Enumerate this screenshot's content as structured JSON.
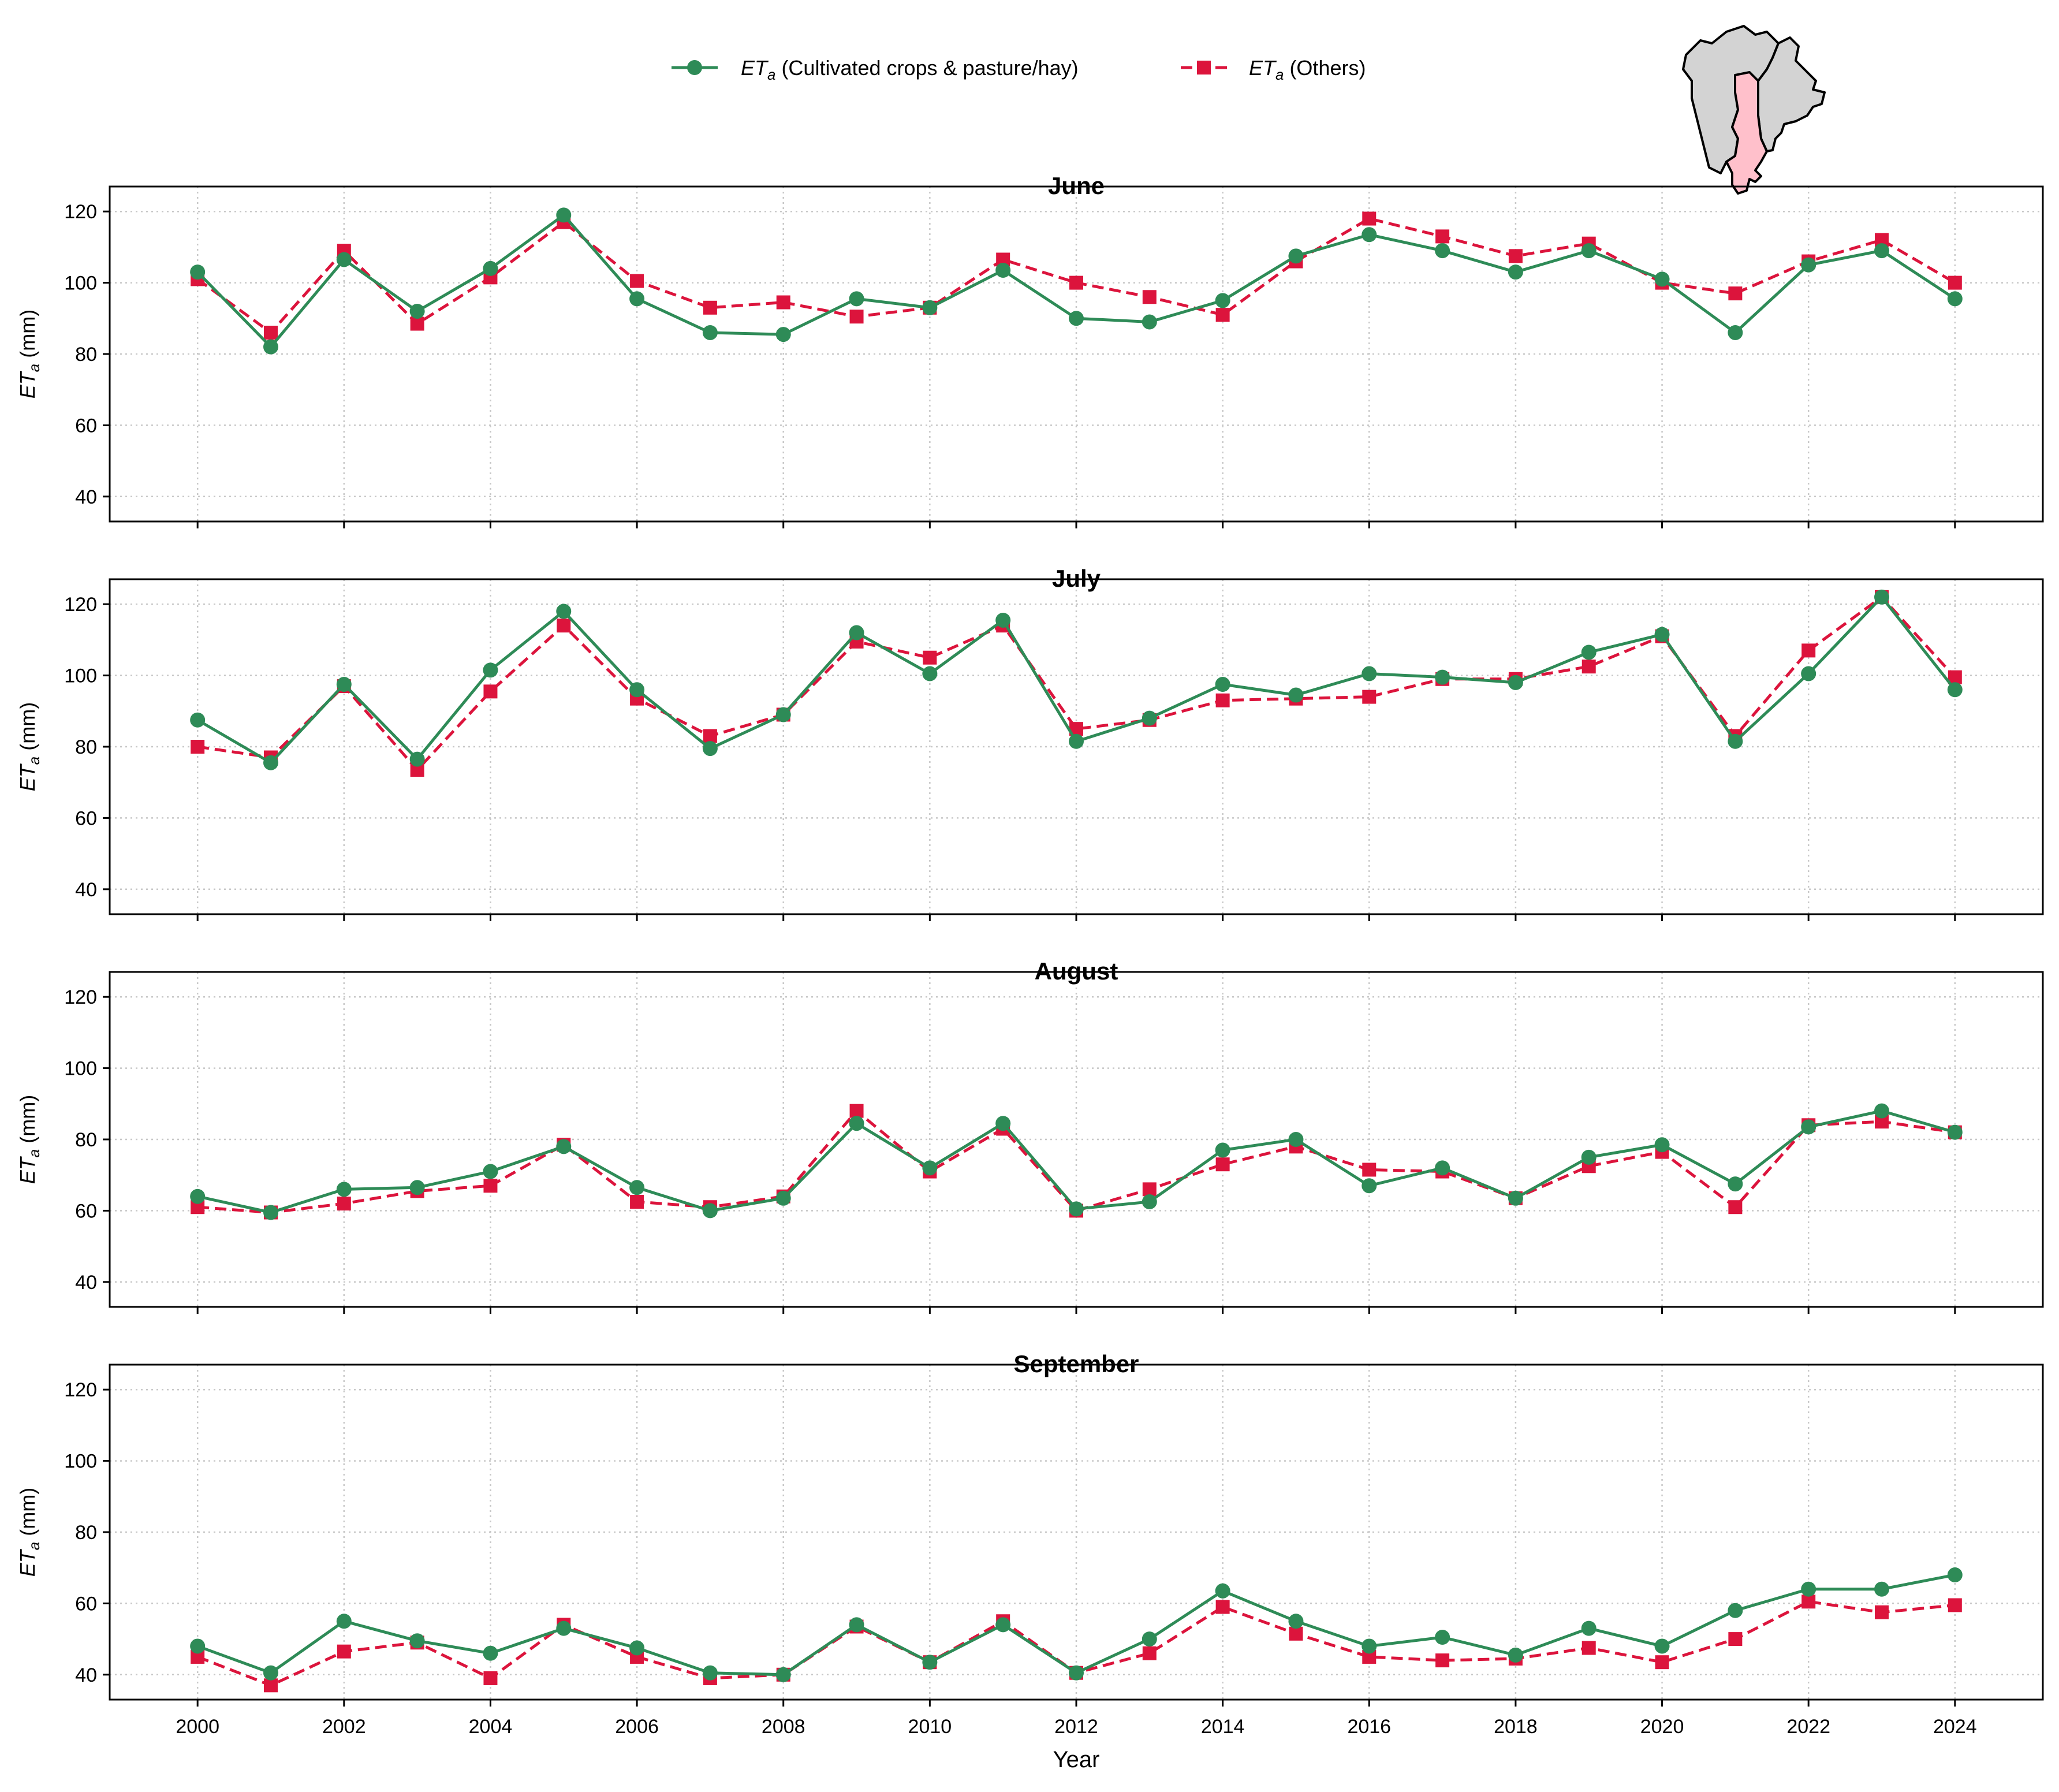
{
  "chart_data": {
    "type": "line",
    "x": [
      2000,
      2001,
      2002,
      2003,
      2004,
      2005,
      2006,
      2007,
      2008,
      2009,
      2010,
      2011,
      2012,
      2013,
      2014,
      2015,
      2016,
      2017,
      2018,
      2019,
      2020,
      2021,
      2022,
      2023,
      2024
    ],
    "xlabel": "Year",
    "ylabel_prefix": "ET",
    "ylabel_sub": "a",
    "ylabel_suffix": " (mm)",
    "ylim": [
      33,
      127
    ],
    "yticks": [
      40,
      60,
      80,
      100,
      120
    ],
    "xticks": [
      2000,
      2002,
      2004,
      2006,
      2008,
      2010,
      2012,
      2014,
      2016,
      2018,
      2020,
      2022,
      2024
    ],
    "xlim": [
      1998.8,
      2025.2
    ],
    "grid": true,
    "legend": {
      "placement": "top-center",
      "entries": [
        {
          "prefix": "ET",
          "sub": "a",
          "suffix": " (Cultivated crops & pasture/hay)",
          "color": "#2e8b57",
          "marker": "circle",
          "dash": "solid"
        },
        {
          "prefix": "ET",
          "sub": "a",
          "suffix": " (Others)",
          "color": "#dc143c",
          "marker": "square",
          "dash": "dashed"
        }
      ]
    },
    "panels": [
      {
        "title": "June",
        "series": [
          {
            "name": "ETa (Cultivated crops & pasture/hay)",
            "values": [
              103,
              82,
              106.5,
              92,
              104,
              119,
              95.5,
              86,
              85.5,
              95.5,
              93,
              103.5,
              90,
              89,
              95,
              107.5,
              113.5,
              109,
              103,
              109,
              101,
              86,
              105,
              109,
              95.5
            ]
          },
          {
            "name": "ETa (Others)",
            "values": [
              101,
              86,
              109,
              88.5,
              101.5,
              117,
              100.5,
              93,
              94.5,
              90.5,
              93,
              106.5,
              100,
              96,
              91,
              106,
              118,
              113,
              107.5,
              111,
              100,
              97,
              106,
              112,
              100
            ]
          }
        ]
      },
      {
        "title": "July",
        "series": [
          {
            "name": "ETa (Cultivated crops & pasture/hay)",
            "values": [
              87.5,
              75.5,
              97.5,
              76.5,
              101.5,
              118,
              96,
              79.5,
              89,
              112,
              100.5,
              115.5,
              81.5,
              88,
              97.5,
              94.5,
              100.5,
              99.5,
              98,
              106.5,
              111.5,
              81.5,
              100.5,
              122,
              96
            ]
          },
          {
            "name": "ETa (Others)",
            "values": [
              80,
              77,
              97,
              73.5,
              95.5,
              114,
              93.5,
              83,
              89,
              109.5,
              105,
              114,
              85,
              87.5,
              93,
              93.5,
              94,
              99,
              99,
              102.5,
              111,
              83,
              107,
              122,
              99.5
            ]
          }
        ]
      },
      {
        "title": "August",
        "series": [
          {
            "name": "ETa (Cultivated crops & pasture/hay)",
            "values": [
              64,
              59.5,
              66,
              66.5,
              71,
              78,
              66.5,
              60,
              63.5,
              84.5,
              72,
              84.5,
              60.5,
              62.5,
              77,
              80,
              67,
              72,
              63.5,
              75,
              78.5,
              67.5,
              83.5,
              88,
              82
            ]
          },
          {
            "name": "ETa (Others)",
            "values": [
              61,
              59.5,
              62,
              65.5,
              67,
              78.5,
              62.5,
              61,
              64,
              88,
              71,
              83,
              60,
              66,
              73,
              78,
              71.5,
              71,
              63.5,
              72.5,
              76.5,
              61,
              84,
              85,
              82
            ]
          }
        ]
      },
      {
        "title": "September",
        "series": [
          {
            "name": "ETa (Cultivated crops & pasture/hay)",
            "values": [
              48,
              40.5,
              55,
              49.5,
              46,
              53,
              47.5,
              40.5,
              40,
              54,
              43.5,
              54,
              40.5,
              50,
              63.5,
              55,
              48,
              50.5,
              45.5,
              53,
              48,
              58,
              64,
              64,
              68
            ]
          },
          {
            "name": "ETa (Others)",
            "values": [
              45,
              37,
              46.5,
              49,
              39,
              54,
              45,
              39,
              40,
              53.5,
              43.5,
              55,
              40.5,
              46,
              59,
              51.5,
              45,
              44,
              44.5,
              47.5,
              43.5,
              50,
              60.5,
              57.5,
              59.5
            ]
          }
        ]
      }
    ]
  },
  "inset_map": {
    "highlight_color": "#ffc0cb",
    "other_color": "#d3d3d3",
    "outline_color": "#000000"
  }
}
